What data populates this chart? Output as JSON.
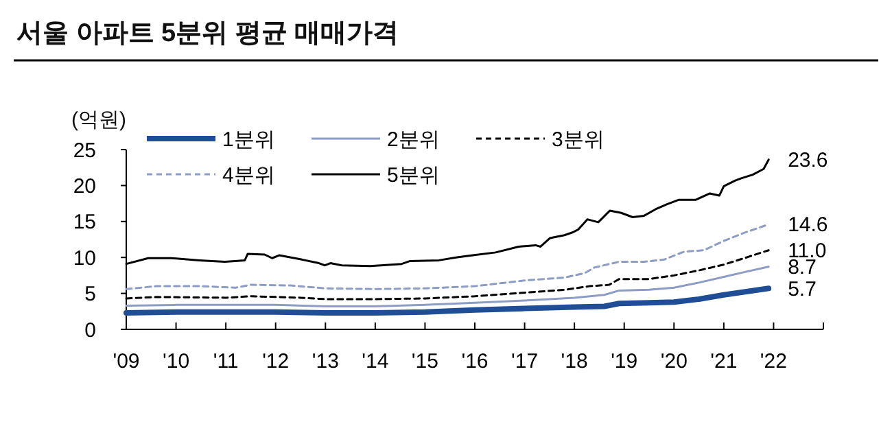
{
  "chart_data": {
    "type": "line",
    "title": "서울 아파트 5분위 평균 매매가격",
    "ylabel": "(억원)",
    "legend": "top left",
    "grid": false,
    "xlim": [
      2009,
      2023
    ],
    "xticks": [
      {
        "value": 2009,
        "label": "'09"
      },
      {
        "value": 2010,
        "label": "'10"
      },
      {
        "value": 2011,
        "label": "'11"
      },
      {
        "value": 2012,
        "label": "'12"
      },
      {
        "value": 2013,
        "label": "'13"
      },
      {
        "value": 2014,
        "label": "'14"
      },
      {
        "value": 2015,
        "label": "'15"
      },
      {
        "value": 2016,
        "label": "'16"
      },
      {
        "value": 2017,
        "label": "'17"
      },
      {
        "value": 2018,
        "label": "'18"
      },
      {
        "value": 2019,
        "label": "'19"
      },
      {
        "value": 2020,
        "label": "'20"
      },
      {
        "value": 2021,
        "label": "'21"
      },
      {
        "value": 2022,
        "label": "'22"
      }
    ],
    "ylim": [
      0,
      25
    ],
    "yticks": [
      0,
      5,
      10,
      15,
      20,
      25
    ],
    "series": [
      {
        "name": "1분위",
        "color": "#1f4e96",
        "line_style": "solid",
        "x": [
          2009,
          2010,
          2011,
          2012,
          2013,
          2014,
          2015,
          2016,
          2017,
          2018,
          2018.6,
          2018.9,
          2019.5,
          2020,
          2020.5,
          2021,
          2021.5,
          2021.9
        ],
        "values": [
          2.3,
          2.4,
          2.4,
          2.4,
          2.3,
          2.3,
          2.4,
          2.7,
          2.9,
          3.1,
          3.2,
          3.6,
          3.7,
          3.8,
          4.2,
          4.8,
          5.3,
          5.7
        ],
        "value_labels": [
          null,
          null,
          null,
          null,
          null,
          null,
          null,
          null,
          null,
          null,
          null,
          null,
          null,
          null,
          null,
          null,
          null,
          "5.7"
        ]
      },
      {
        "name": "2분위",
        "color": "#8c9cc4",
        "line_style": "solid",
        "x": [
          2009,
          2010,
          2011,
          2012,
          2013,
          2014,
          2015,
          2016,
          2017,
          2018,
          2018.6,
          2018.9,
          2019.5,
          2020,
          2020.5,
          2021,
          2021.5,
          2021.9
        ],
        "values": [
          3.3,
          3.4,
          3.4,
          3.4,
          3.2,
          3.2,
          3.4,
          3.7,
          4.0,
          4.4,
          4.8,
          5.4,
          5.5,
          5.8,
          6.5,
          7.3,
          8.1,
          8.7
        ],
        "value_labels": [
          null,
          null,
          null,
          null,
          null,
          null,
          null,
          null,
          null,
          null,
          null,
          null,
          null,
          null,
          null,
          null,
          null,
          "8.7"
        ]
      },
      {
        "name": "3분위",
        "color": "#000000",
        "line_style": "dashed",
        "x": [
          2009,
          2009.6,
          2011,
          2011.5,
          2012.5,
          2013,
          2014,
          2015,
          2016,
          2017,
          2017.8,
          2018.3,
          2018.7,
          2018.9,
          2019.5,
          2020,
          2020.5,
          2021,
          2021.5,
          2021.9
        ],
        "values": [
          4.3,
          4.5,
          4.4,
          4.6,
          4.4,
          4.2,
          4.2,
          4.3,
          4.6,
          5.1,
          5.5,
          6.0,
          6.2,
          7.0,
          7.0,
          7.5,
          8.2,
          9.0,
          10.1,
          11.0
        ],
        "value_labels": [
          null,
          null,
          null,
          null,
          null,
          null,
          null,
          null,
          null,
          null,
          null,
          null,
          null,
          null,
          null,
          null,
          null,
          null,
          null,
          "11.0"
        ]
      },
      {
        "name": "4분위",
        "color": "#8c9cc4",
        "line_style": "dashed",
        "x": [
          2009,
          2009.6,
          2010.5,
          2011.2,
          2011.5,
          2012.3,
          2013,
          2014,
          2015,
          2016,
          2016.5,
          2017,
          2017.8,
          2018.2,
          2018.4,
          2018.9,
          2019.4,
          2019.8,
          2020.2,
          2020.6,
          2021,
          2021.4,
          2021.9
        ],
        "values": [
          5.6,
          6.0,
          6.0,
          5.8,
          6.2,
          6.1,
          5.7,
          5.6,
          5.7,
          6.0,
          6.4,
          6.8,
          7.2,
          7.8,
          8.6,
          9.4,
          9.4,
          9.7,
          10.8,
          11.0,
          12.3,
          13.4,
          14.6
        ],
        "value_labels": [
          null,
          null,
          null,
          null,
          null,
          null,
          null,
          null,
          null,
          null,
          null,
          null,
          null,
          null,
          null,
          null,
          null,
          null,
          null,
          null,
          null,
          null,
          "14.6"
        ]
      },
      {
        "name": "5분위",
        "color": "#000000",
        "line_style": "solid",
        "x": [
          2009,
          2009.44,
          2009.9,
          2010.47,
          2010.98,
          2011.38,
          2011.44,
          2011.78,
          2011.93,
          2012.07,
          2012.53,
          2012.87,
          2012.99,
          2013.1,
          2013.33,
          2013.9,
          2014.53,
          2014.7,
          2015.28,
          2015.62,
          2015.96,
          2016.42,
          2016.88,
          2017.22,
          2017.32,
          2017.51,
          2017.8,
          2017.97,
          2018.08,
          2018.26,
          2018.48,
          2018.71,
          2018.94,
          2019.17,
          2019.4,
          2019.63,
          2019.86,
          2020.09,
          2020.43,
          2020.72,
          2020.91,
          2021,
          2021.23,
          2021.35,
          2021.58,
          2021.8,
          2021.9
        ],
        "values": [
          9.1,
          9.9,
          9.9,
          9.6,
          9.4,
          9.6,
          10.5,
          10.4,
          9.9,
          10.3,
          9.7,
          9.2,
          8.9,
          9.2,
          8.9,
          8.8,
          9.1,
          9.5,
          9.6,
          10.0,
          10.3,
          10.7,
          11.5,
          11.7,
          11.5,
          12.7,
          13.1,
          13.5,
          13.9,
          15.3,
          14.9,
          16.5,
          16.2,
          15.6,
          15.8,
          16.7,
          17.4,
          18.0,
          18.0,
          18.9,
          18.6,
          19.9,
          20.7,
          21.0,
          21.5,
          22.3,
          23.6
        ],
        "value_labels": [
          null,
          null,
          null,
          null,
          null,
          null,
          null,
          null,
          null,
          null,
          null,
          null,
          null,
          null,
          null,
          null,
          null,
          null,
          null,
          null,
          null,
          null,
          null,
          null,
          null,
          null,
          null,
          null,
          null,
          null,
          null,
          null,
          null,
          null,
          null,
          null,
          null,
          null,
          null,
          null,
          null,
          null,
          null,
          null,
          null,
          null,
          "23.6"
        ]
      }
    ]
  }
}
